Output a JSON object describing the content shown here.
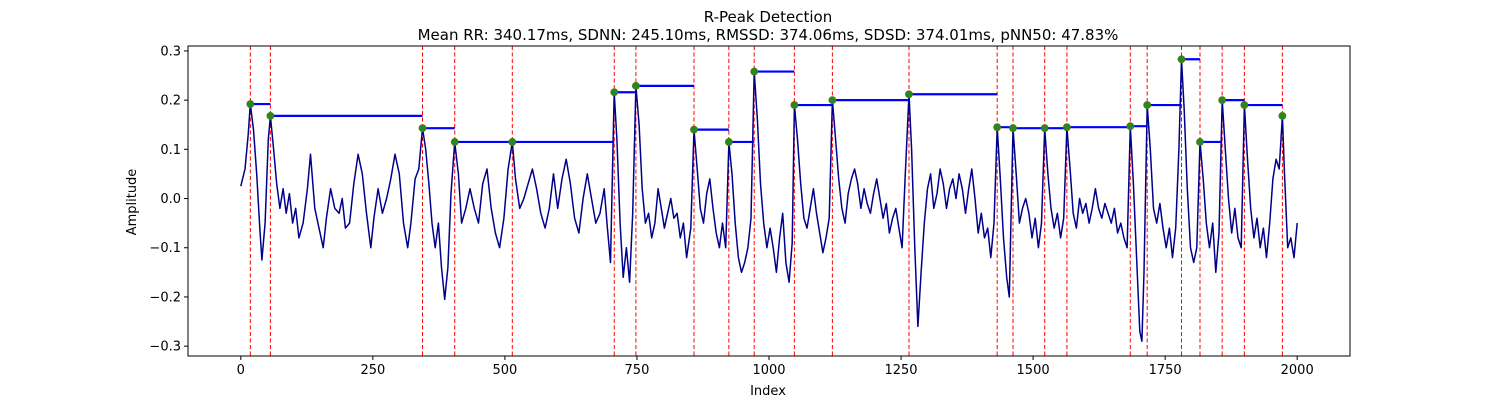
{
  "chart_data": {
    "type": "line",
    "title": "R-Peak Detection",
    "subtitle": "Mean RR: 340.17ms, SDNN: 245.10ms, RMSSD: 374.06ms, SDSD: 374.01ms, pNN50: 47.83%",
    "xlabel": "Index",
    "ylabel": "Amplitude",
    "xlim": [
      -100,
      2100
    ],
    "ylim": [
      -0.32,
      0.31
    ],
    "xticks": [
      0,
      250,
      500,
      750,
      1000,
      1250,
      1500,
      1750,
      2000
    ],
    "xtick_labels": [
      "0",
      "250",
      "500",
      "750",
      "1000",
      "1250",
      "1500",
      "1750",
      "2000"
    ],
    "yticks": [
      -0.3,
      -0.2,
      -0.1,
      0.0,
      0.1,
      0.2,
      0.3
    ],
    "ytick_labels": [
      "−0.3",
      "−0.2",
      "−0.1",
      "0.0",
      "0.1",
      "0.2",
      "0.3"
    ],
    "grid": false,
    "colors": {
      "signal": "#00008b",
      "peak_marker": "#228b22",
      "peak_line": "#ff0000",
      "rr_segment": "#0000ff"
    },
    "signal_points": [
      [
        0,
        0.025
      ],
      [
        8,
        0.06
      ],
      [
        14,
        0.13
      ],
      [
        18,
        0.192
      ],
      [
        24,
        0.14
      ],
      [
        30,
        0.05
      ],
      [
        36,
        -0.06
      ],
      [
        40,
        -0.125
      ],
      [
        46,
        -0.05
      ],
      [
        52,
        0.12
      ],
      [
        56,
        0.168
      ],
      [
        62,
        0.1
      ],
      [
        68,
        0.03
      ],
      [
        74,
        -0.02
      ],
      [
        80,
        0.02
      ],
      [
        86,
        -0.03
      ],
      [
        92,
        0.01
      ],
      [
        98,
        -0.05
      ],
      [
        104,
        -0.02
      ],
      [
        110,
        -0.08
      ],
      [
        118,
        -0.05
      ],
      [
        126,
        0.02
      ],
      [
        132,
        0.09
      ],
      [
        140,
        -0.02
      ],
      [
        148,
        -0.06
      ],
      [
        156,
        -0.1
      ],
      [
        162,
        -0.04
      ],
      [
        170,
        0.02
      ],
      [
        178,
        -0.02
      ],
      [
        186,
        -0.03
      ],
      [
        192,
        0.0
      ],
      [
        198,
        -0.06
      ],
      [
        206,
        -0.05
      ],
      [
        214,
        0.03
      ],
      [
        222,
        0.09
      ],
      [
        230,
        0.05
      ],
      [
        238,
        -0.03
      ],
      [
        246,
        -0.1
      ],
      [
        252,
        -0.04
      ],
      [
        260,
        0.02
      ],
      [
        268,
        -0.03
      ],
      [
        276,
        0.0
      ],
      [
        284,
        0.04
      ],
      [
        292,
        0.09
      ],
      [
        300,
        0.05
      ],
      [
        308,
        -0.05
      ],
      [
        316,
        -0.1
      ],
      [
        322,
        -0.05
      ],
      [
        330,
        0.04
      ],
      [
        337,
        0.06
      ],
      [
        344,
        0.143
      ],
      [
        350,
        0.1
      ],
      [
        356,
        0.03
      ],
      [
        362,
        -0.05
      ],
      [
        368,
        -0.1
      ],
      [
        374,
        -0.05
      ],
      [
        380,
        -0.14
      ],
      [
        386,
        -0.205
      ],
      [
        392,
        -0.14
      ],
      [
        398,
        0.01
      ],
      [
        405,
        0.115
      ],
      [
        412,
        0.05
      ],
      [
        418,
        -0.05
      ],
      [
        426,
        -0.02
      ],
      [
        434,
        0.02
      ],
      [
        442,
        -0.02
      ],
      [
        450,
        -0.05
      ],
      [
        458,
        0.03
      ],
      [
        466,
        0.06
      ],
      [
        474,
        -0.02
      ],
      [
        482,
        -0.07
      ],
      [
        490,
        -0.1
      ],
      [
        498,
        -0.04
      ],
      [
        506,
        0.06
      ],
      [
        514,
        0.115
      ],
      [
        520,
        0.04
      ],
      [
        528,
        -0.02
      ],
      [
        536,
        0.0
      ],
      [
        544,
        0.03
      ],
      [
        552,
        0.06
      ],
      [
        560,
        0.02
      ],
      [
        568,
        -0.03
      ],
      [
        576,
        -0.06
      ],
      [
        584,
        -0.02
      ],
      [
        592,
        0.05
      ],
      [
        600,
        -0.02
      ],
      [
        608,
        0.04
      ],
      [
        616,
        0.08
      ],
      [
        624,
        0.03
      ],
      [
        632,
        -0.04
      ],
      [
        640,
        -0.07
      ],
      [
        648,
        0.0
      ],
      [
        656,
        0.05
      ],
      [
        664,
        0.0
      ],
      [
        672,
        -0.05
      ],
      [
        680,
        -0.03
      ],
      [
        688,
        0.02
      ],
      [
        694,
        -0.06
      ],
      [
        700,
        -0.13
      ],
      [
        707,
        0.216
      ],
      [
        712,
        0.12
      ],
      [
        718,
        -0.05
      ],
      [
        724,
        -0.16
      ],
      [
        730,
        -0.1
      ],
      [
        736,
        -0.17
      ],
      [
        742,
        -0.03
      ],
      [
        748,
        0.229
      ],
      [
        754,
        0.15
      ],
      [
        760,
        0.02
      ],
      [
        766,
        -0.05
      ],
      [
        772,
        -0.03
      ],
      [
        778,
        -0.08
      ],
      [
        784,
        -0.05
      ],
      [
        790,
        0.02
      ],
      [
        796,
        -0.02
      ],
      [
        802,
        -0.06
      ],
      [
        808,
        -0.03
      ],
      [
        814,
        0.0
      ],
      [
        820,
        -0.04
      ],
      [
        826,
        -0.03
      ],
      [
        832,
        -0.08
      ],
      [
        838,
        -0.05
      ],
      [
        844,
        -0.12
      ],
      [
        852,
        -0.06
      ],
      [
        858,
        0.14
      ],
      [
        864,
        0.06
      ],
      [
        870,
        -0.02
      ],
      [
        876,
        -0.05
      ],
      [
        882,
        0.01
      ],
      [
        888,
        0.04
      ],
      [
        894,
        -0.02
      ],
      [
        900,
        -0.07
      ],
      [
        906,
        -0.1
      ],
      [
        912,
        -0.05
      ],
      [
        918,
        -0.1
      ],
      [
        924,
        0.115
      ],
      [
        930,
        0.05
      ],
      [
        936,
        -0.05
      ],
      [
        942,
        -0.12
      ],
      [
        948,
        -0.15
      ],
      [
        954,
        -0.13
      ],
      [
        960,
        -0.1
      ],
      [
        966,
        -0.04
      ],
      [
        972,
        0.258
      ],
      [
        978,
        0.16
      ],
      [
        984,
        0.03
      ],
      [
        990,
        -0.05
      ],
      [
        996,
        -0.1
      ],
      [
        1002,
        -0.06
      ],
      [
        1008,
        -0.1
      ],
      [
        1014,
        -0.15
      ],
      [
        1020,
        -0.08
      ],
      [
        1026,
        -0.03
      ],
      [
        1032,
        -0.13
      ],
      [
        1038,
        -0.17
      ],
      [
        1044,
        -0.09
      ],
      [
        1048,
        0.19
      ],
      [
        1054,
        0.12
      ],
      [
        1060,
        0.03
      ],
      [
        1066,
        -0.04
      ],
      [
        1072,
        -0.06
      ],
      [
        1078,
        -0.02
      ],
      [
        1084,
        0.02
      ],
      [
        1090,
        -0.03
      ],
      [
        1096,
        -0.07
      ],
      [
        1102,
        -0.11
      ],
      [
        1108,
        -0.08
      ],
      [
        1114,
        -0.04
      ],
      [
        1120,
        0.2
      ],
      [
        1126,
        0.12
      ],
      [
        1132,
        0.04
      ],
      [
        1138,
        -0.02
      ],
      [
        1144,
        -0.05
      ],
      [
        1150,
        0.01
      ],
      [
        1156,
        0.04
      ],
      [
        1162,
        0.06
      ],
      [
        1168,
        0.03
      ],
      [
        1174,
        -0.02
      ],
      [
        1180,
        0.02
      ],
      [
        1186,
        -0.01
      ],
      [
        1192,
        -0.03
      ],
      [
        1198,
        0.01
      ],
      [
        1204,
        0.04
      ],
      [
        1210,
        0.0
      ],
      [
        1216,
        -0.04
      ],
      [
        1222,
        -0.01
      ],
      [
        1228,
        -0.07
      ],
      [
        1234,
        -0.04
      ],
      [
        1240,
        -0.02
      ],
      [
        1246,
        -0.06
      ],
      [
        1252,
        -0.1
      ],
      [
        1258,
        0.05
      ],
      [
        1265,
        0.212
      ],
      [
        1270,
        0.1
      ],
      [
        1276,
        -0.1
      ],
      [
        1282,
        -0.26
      ],
      [
        1288,
        -0.15
      ],
      [
        1294,
        -0.05
      ],
      [
        1300,
        0.02
      ],
      [
        1306,
        0.05
      ],
      [
        1312,
        -0.02
      ],
      [
        1318,
        0.01
      ],
      [
        1324,
        0.06
      ],
      [
        1330,
        0.03
      ],
      [
        1336,
        -0.02
      ],
      [
        1342,
        0.02
      ],
      [
        1348,
        0.04
      ],
      [
        1354,
        0.0
      ],
      [
        1360,
        0.05
      ],
      [
        1366,
        0.02
      ],
      [
        1372,
        -0.03
      ],
      [
        1378,
        0.02
      ],
      [
        1384,
        0.06
      ],
      [
        1390,
        0.0
      ],
      [
        1396,
        -0.07
      ],
      [
        1402,
        -0.03
      ],
      [
        1408,
        -0.08
      ],
      [
        1414,
        -0.06
      ],
      [
        1420,
        -0.12
      ],
      [
        1426,
        -0.05
      ],
      [
        1432,
        0.145
      ],
      [
        1438,
        0.04
      ],
      [
        1444,
        -0.08
      ],
      [
        1450,
        -0.16
      ],
      [
        1455,
        -0.2
      ],
      [
        1462,
        0.143
      ],
      [
        1468,
        0.05
      ],
      [
        1474,
        -0.05
      ],
      [
        1480,
        -0.02
      ],
      [
        1486,
        0.0
      ],
      [
        1492,
        -0.03
      ],
      [
        1498,
        -0.08
      ],
      [
        1504,
        -0.04
      ],
      [
        1510,
        -0.1
      ],
      [
        1516,
        -0.05
      ],
      [
        1522,
        0.143
      ],
      [
        1528,
        0.05
      ],
      [
        1534,
        -0.02
      ],
      [
        1540,
        -0.06
      ],
      [
        1546,
        -0.03
      ],
      [
        1552,
        -0.08
      ],
      [
        1558,
        -0.04
      ],
      [
        1564,
        0.145
      ],
      [
        1570,
        0.06
      ],
      [
        1576,
        -0.03
      ],
      [
        1582,
        -0.06
      ],
      [
        1588,
        0.0
      ],
      [
        1594,
        -0.03
      ],
      [
        1600,
        -0.01
      ],
      [
        1606,
        -0.05
      ],
      [
        1612,
        -0.02
      ],
      [
        1618,
        0.02
      ],
      [
        1624,
        -0.02
      ],
      [
        1630,
        -0.04
      ],
      [
        1636,
        -0.01
      ],
      [
        1642,
        -0.03
      ],
      [
        1648,
        -0.05
      ],
      [
        1654,
        -0.02
      ],
      [
        1660,
        -0.07
      ],
      [
        1666,
        -0.05
      ],
      [
        1672,
        -0.08
      ],
      [
        1678,
        -0.1
      ],
      [
        1684,
        0.147
      ],
      [
        1690,
        0.03
      ],
      [
        1696,
        -0.12
      ],
      [
        1702,
        -0.27
      ],
      [
        1706,
        -0.29
      ],
      [
        1710,
        -0.15
      ],
      [
        1716,
        0.19
      ],
      [
        1722,
        0.1
      ],
      [
        1728,
        -0.02
      ],
      [
        1734,
        -0.05
      ],
      [
        1740,
        -0.01
      ],
      [
        1746,
        -0.06
      ],
      [
        1752,
        -0.1
      ],
      [
        1758,
        -0.06
      ],
      [
        1764,
        -0.12
      ],
      [
        1770,
        -0.06
      ],
      [
        1776,
        0.1
      ],
      [
        1781,
        0.283
      ],
      [
        1786,
        0.18
      ],
      [
        1792,
        0.02
      ],
      [
        1798,
        -0.1
      ],
      [
        1804,
        -0.13
      ],
      [
        1810,
        -0.1
      ],
      [
        1816,
        0.115
      ],
      [
        1822,
        0.04
      ],
      [
        1828,
        -0.05
      ],
      [
        1834,
        -0.1
      ],
      [
        1840,
        -0.05
      ],
      [
        1846,
        -0.15
      ],
      [
        1852,
        -0.07
      ],
      [
        1858,
        0.2
      ],
      [
        1864,
        0.1
      ],
      [
        1870,
        0.0
      ],
      [
        1876,
        -0.07
      ],
      [
        1882,
        -0.02
      ],
      [
        1888,
        -0.08
      ],
      [
        1894,
        -0.1
      ],
      [
        1900,
        0.19
      ],
      [
        1906,
        0.08
      ],
      [
        1912,
        -0.02
      ],
      [
        1918,
        -0.08
      ],
      [
        1924,
        -0.04
      ],
      [
        1930,
        -0.1
      ],
      [
        1936,
        -0.06
      ],
      [
        1942,
        -0.12
      ],
      [
        1948,
        -0.05
      ],
      [
        1954,
        0.04
      ],
      [
        1960,
        0.08
      ],
      [
        1966,
        0.06
      ],
      [
        1972,
        0.168
      ],
      [
        1976,
        0.05
      ],
      [
        1982,
        -0.1
      ],
      [
        1988,
        -0.08
      ],
      [
        1994,
        -0.12
      ],
      [
        2000,
        -0.05
      ]
    ],
    "peaks": [
      {
        "x": 18,
        "y": 0.192
      },
      {
        "x": 56,
        "y": 0.168
      },
      {
        "x": 344,
        "y": 0.143
      },
      {
        "x": 405,
        "y": 0.115
      },
      {
        "x": 514,
        "y": 0.115
      },
      {
        "x": 707,
        "y": 0.216
      },
      {
        "x": 748,
        "y": 0.229
      },
      {
        "x": 858,
        "y": 0.14
      },
      {
        "x": 924,
        "y": 0.115
      },
      {
        "x": 972,
        "y": 0.258
      },
      {
        "x": 1048,
        "y": 0.19
      },
      {
        "x": 1120,
        "y": 0.2
      },
      {
        "x": 1265,
        "y": 0.212
      },
      {
        "x": 1432,
        "y": 0.145
      },
      {
        "x": 1462,
        "y": 0.143
      },
      {
        "x": 1522,
        "y": 0.143
      },
      {
        "x": 1564,
        "y": 0.145
      },
      {
        "x": 1684,
        "y": 0.147
      },
      {
        "x": 1716,
        "y": 0.19
      },
      {
        "x": 1781,
        "y": 0.283
      },
      {
        "x": 1816,
        "y": 0.115
      },
      {
        "x": 1858,
        "y": 0.2
      },
      {
        "x": 1900,
        "y": 0.19
      },
      {
        "x": 1972,
        "y": 0.168
      }
    ]
  }
}
